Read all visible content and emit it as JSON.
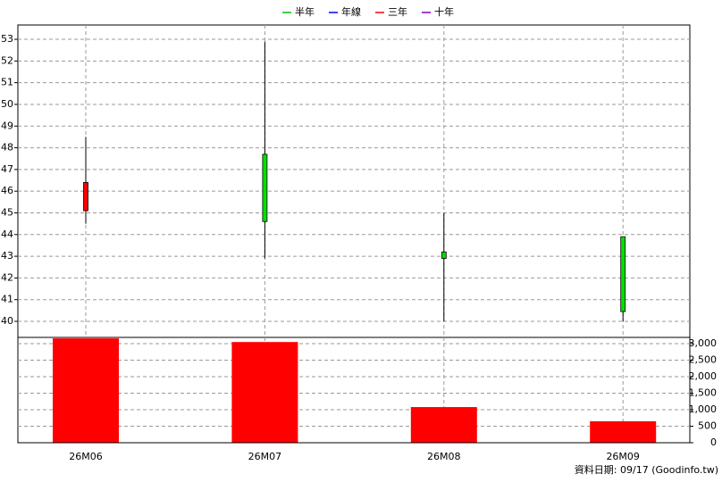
{
  "chart_data": {
    "type": "candlestick",
    "legend": [
      {
        "name": "半年",
        "color": "#00c000"
      },
      {
        "name": "年線",
        "color": "#0000ff"
      },
      {
        "name": "三年",
        "color": "#ff0000"
      },
      {
        "name": "十年",
        "color": "#8000c0"
      }
    ],
    "categories": [
      "26M06",
      "26M07",
      "26M08",
      "26M09"
    ],
    "open": [
      45.1,
      47.7,
      43.2,
      43.9
    ],
    "high": [
      48.5,
      52.9,
      45.0,
      43.9
    ],
    "low": [
      44.5,
      42.9,
      40.0,
      40.0
    ],
    "close": [
      46.4,
      44.6,
      42.9,
      40.45
    ],
    "up_color": "#ff0000",
    "down_color": "#00e000",
    "ylim": [
      39.26,
      53.66
    ],
    "yticks": [
      40,
      41,
      42,
      43,
      44,
      45,
      46,
      47,
      48,
      49,
      50,
      51,
      52,
      53
    ],
    "grid": true,
    "volume": {
      "values": [
        3160,
        3050,
        1080,
        650
      ],
      "color": "#ff0000",
      "ylim": [
        0,
        3190
      ],
      "yticks": [
        0,
        500,
        {
          "value": 1000,
          "label": "1,000"
        },
        {
          "value": 1500,
          "label": "1,500"
        },
        {
          "value": 2000,
          "label": "2,000"
        },
        {
          "value": 2500,
          "label": "2,500"
        },
        {
          "value": 3000,
          "label": "3,000"
        }
      ]
    },
    "source": "資料日期: 09/17  (Goodinfo.tw)"
  }
}
